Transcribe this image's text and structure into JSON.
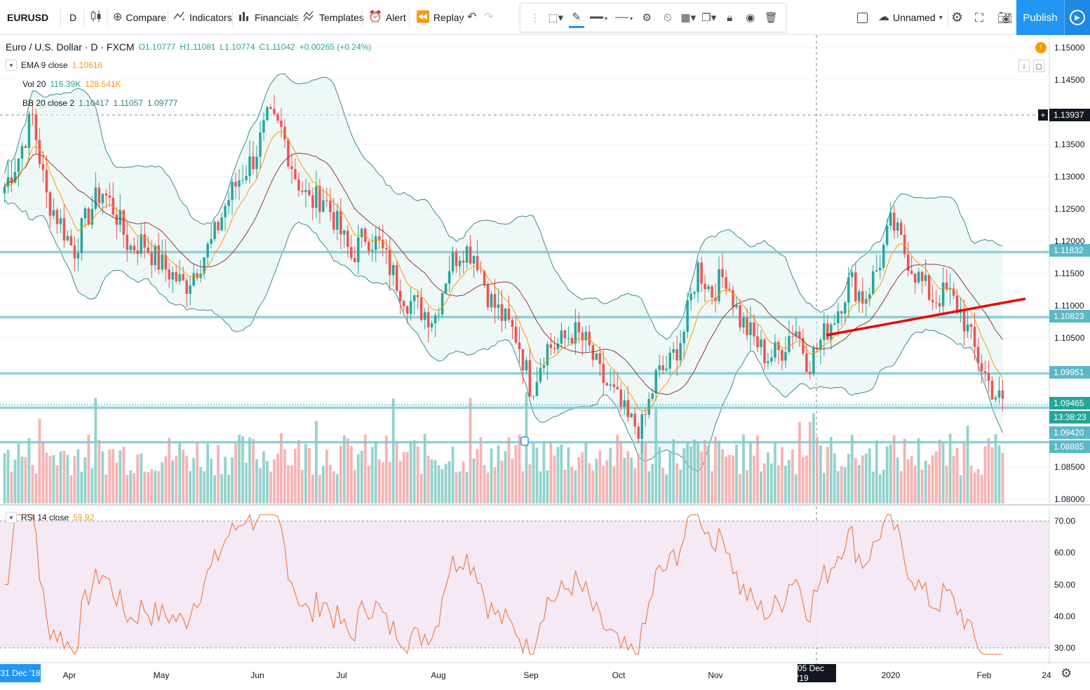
{
  "toolbar": {
    "symbol": "EURUSD",
    "interval": "D",
    "compare": "Compare",
    "indicators": "Indicators",
    "financials": "Financials",
    "templates": "Templates",
    "alert": "Alert",
    "replay": "Replay",
    "layout_name": "Unnamed",
    "publish": "Publish"
  },
  "legend": {
    "title": "Euro / U.S. Dollar · D · FXCM",
    "open": "O1.10777",
    "high": "H1.11081",
    "low": "L1.10774",
    "close": "C1.11042",
    "change": "+0.00265 (+0.24%)",
    "ema_label": "EMA 9 close",
    "ema_value": "1.10616",
    "vol_label": "Vol 20",
    "vol_value1": "116.39K",
    "vol_value2": "128.541K",
    "bb_label": "BB 20 close 2",
    "bb_v1": "1.10417",
    "bb_v2": "1.11057",
    "bb_v3": "1.09777",
    "rsi_label": "RSI 14 close",
    "rsi_value": "59.92"
  },
  "price_axis": {
    "ticks": [
      "1.15000",
      "1.14500",
      "1.13500",
      "1.13000",
      "1.12500",
      "1.12000",
      "1.11500",
      "1.11000",
      "1.10500",
      "1.08500",
      "1.08000"
    ],
    "tags": [
      {
        "text": "1.13937",
        "color": "#131722"
      },
      {
        "text": "1.11832",
        "color": "#5cb8c8"
      },
      {
        "text": "1.10823",
        "color": "#5cb8c8"
      },
      {
        "text": "1.09951",
        "color": "#5cb8c8"
      },
      {
        "text": "1.09465",
        "color": "#26a69a"
      },
      {
        "text": "13:38:23",
        "color": "#26a69a"
      },
      {
        "text": "1.09420",
        "color": "#5cb8c8"
      },
      {
        "text": "1.08885",
        "color": "#5cb8c8"
      }
    ]
  },
  "rsi_axis": {
    "ticks": [
      "70.00",
      "60.00",
      "50.00",
      "40.00",
      "30.00"
    ]
  },
  "time_axis": {
    "labels": [
      "Apr",
      "May",
      "Jun",
      "Jul",
      "Aug",
      "Sep",
      "Oct",
      "Nov",
      "2020",
      "Feb",
      "24"
    ],
    "start_tag": "31 Dec '18",
    "cursor_tag": "05 Dec '19"
  },
  "chart_data": {
    "type": "candlestick",
    "symbol": "EURUSD",
    "ylim": [
      1.08,
      1.15
    ],
    "horizontal_levels": [
      1.11832,
      1.10823,
      1.09951,
      1.0942,
      1.08885
    ],
    "last_price": 1.09465,
    "rsi_levels": [
      70,
      30
    ],
    "close_series_approx": [
      1.1285,
      1.133,
      1.1395,
      1.127,
      1.123,
      1.1185,
      1.124,
      1.128,
      1.1245,
      1.119,
      1.12,
      1.117,
      1.115,
      1.113,
      1.1165,
      1.12,
      1.126,
      1.13,
      1.133,
      1.139,
      1.137,
      1.13,
      1.126,
      1.127,
      1.1225,
      1.1175,
      1.121,
      1.1195,
      1.115,
      1.111,
      1.1095,
      1.108,
      1.116,
      1.119,
      1.118,
      1.111,
      1.108,
      1.105,
      1.097,
      1.1035,
      1.104,
      1.106,
      1.104,
      1.099,
      1.096,
      1.092,
      1.091,
      1.099,
      1.101,
      1.106,
      1.116,
      1.112,
      1.115,
      1.108,
      1.105,
      1.102,
      1.103,
      1.107,
      1.101,
      1.105,
      1.109,
      1.114,
      1.111,
      1.116,
      1.123,
      1.118,
      1.114,
      1.111,
      1.112,
      1.109,
      1.103,
      1.098,
      1.0945
    ]
  }
}
